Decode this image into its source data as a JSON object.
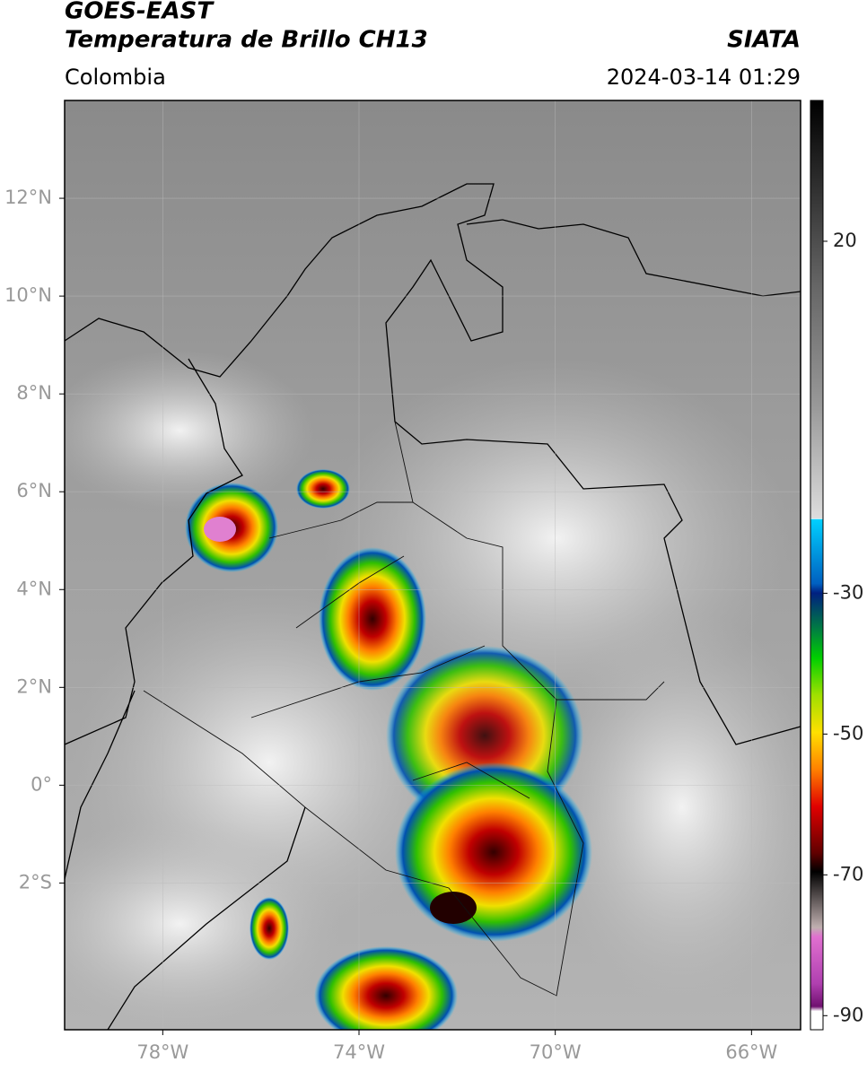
{
  "header": {
    "satellite": "GOES-EAST",
    "product": "Temperatura de Brillo CH13",
    "source": "SIATA",
    "region": "Colombia",
    "datetime": "2024-03-14 01:29"
  },
  "map": {
    "xlim": [
      -80,
      -65
    ],
    "ylim": [
      -5,
      14
    ],
    "xticks": [
      {
        "value": -78,
        "label": "78°W"
      },
      {
        "value": -74,
        "label": "74°W"
      },
      {
        "value": -70,
        "label": "70°W"
      },
      {
        "value": -66,
        "label": "66°W"
      }
    ],
    "yticks": [
      {
        "value": 12,
        "label": "12°N"
      },
      {
        "value": 10,
        "label": "10°N"
      },
      {
        "value": 8,
        "label": "8°N"
      },
      {
        "value": 6,
        "label": "6°N"
      },
      {
        "value": 4,
        "label": "4°N"
      },
      {
        "value": 2,
        "label": "2°N"
      },
      {
        "value": 0,
        "label": "0°"
      },
      {
        "value": -2,
        "label": "2°S"
      }
    ],
    "grid": true
  },
  "colorbar": {
    "range": [
      -92,
      40
    ],
    "ticks": [
      20,
      -30,
      -50,
      -70,
      -90
    ]
  }
}
